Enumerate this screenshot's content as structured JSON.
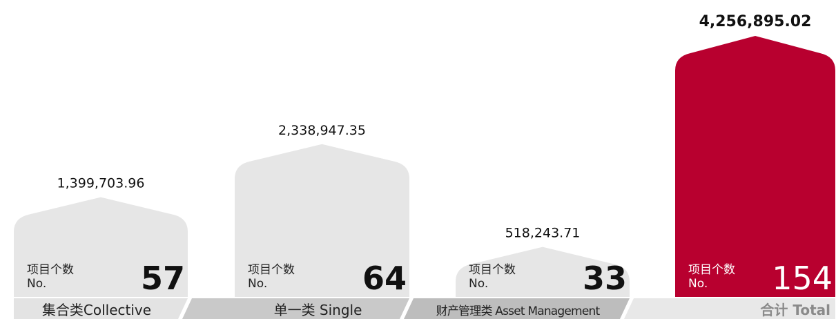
{
  "chart_data": {
    "type": "bar",
    "categories": [
      "集合类Collective",
      "单一类 Single",
      "财产管理类 Asset Management",
      "合计 Total"
    ],
    "values": [
      1399703.96,
      2338947.35,
      518243.71,
      4256895.02
    ],
    "value_labels": [
      "1,399,703.96",
      "2,338,947.35",
      "518,243.71",
      "4,256,895.02"
    ],
    "counts": [
      57,
      64,
      33,
      154
    ],
    "count_label": "项目个数",
    "count_unit_label": "No.",
    "colors": [
      "#e6e6e6",
      "#e6e6e6",
      "#e6e6e6",
      "#b8002f"
    ]
  }
}
